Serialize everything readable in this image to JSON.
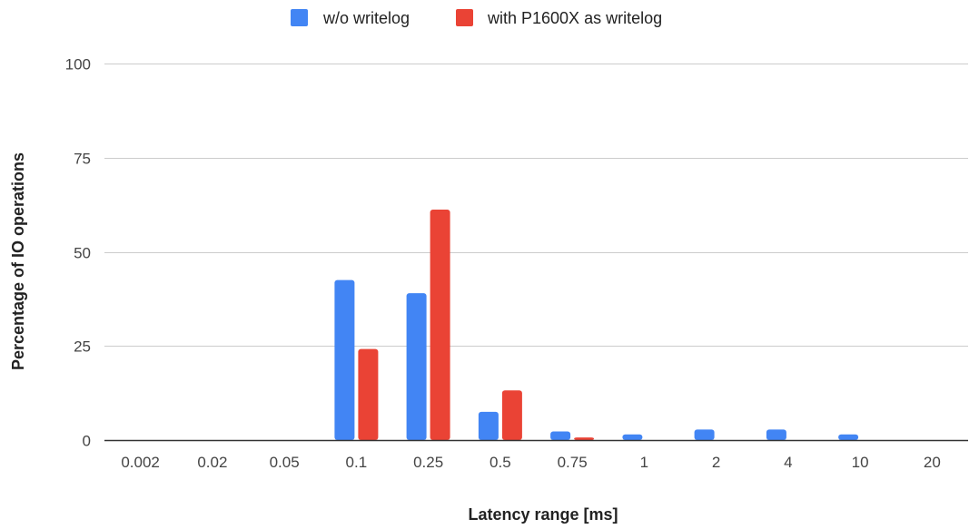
{
  "chart_data": {
    "type": "bar",
    "categories": [
      "0.002",
      "0.02",
      "0.05",
      "0.1",
      "0.25",
      "0.5",
      "0.75",
      "1",
      "2",
      "4",
      "10",
      "20"
    ],
    "series": [
      {
        "name": "w/o writelog",
        "color": "#4285f4",
        "values": [
          0,
          0,
          0,
          42.5,
          39,
          7.5,
          2.3,
          1.5,
          2.8,
          2.8,
          1.5,
          0
        ]
      },
      {
        "name": "with P1600X as writelog",
        "color": "#ea4335",
        "values": [
          0,
          0,
          0,
          24.2,
          61.2,
          13.2,
          0.7,
          0,
          0,
          0,
          0,
          0
        ]
      }
    ],
    "title": "",
    "xlabel": "Latency range [ms]",
    "ylabel": "Percentage of IO operations",
    "ylim": [
      0,
      100
    ],
    "yticks": [
      "0",
      "25",
      "50",
      "75",
      "100"
    ],
    "grid": true,
    "legend_position": "top-center"
  }
}
